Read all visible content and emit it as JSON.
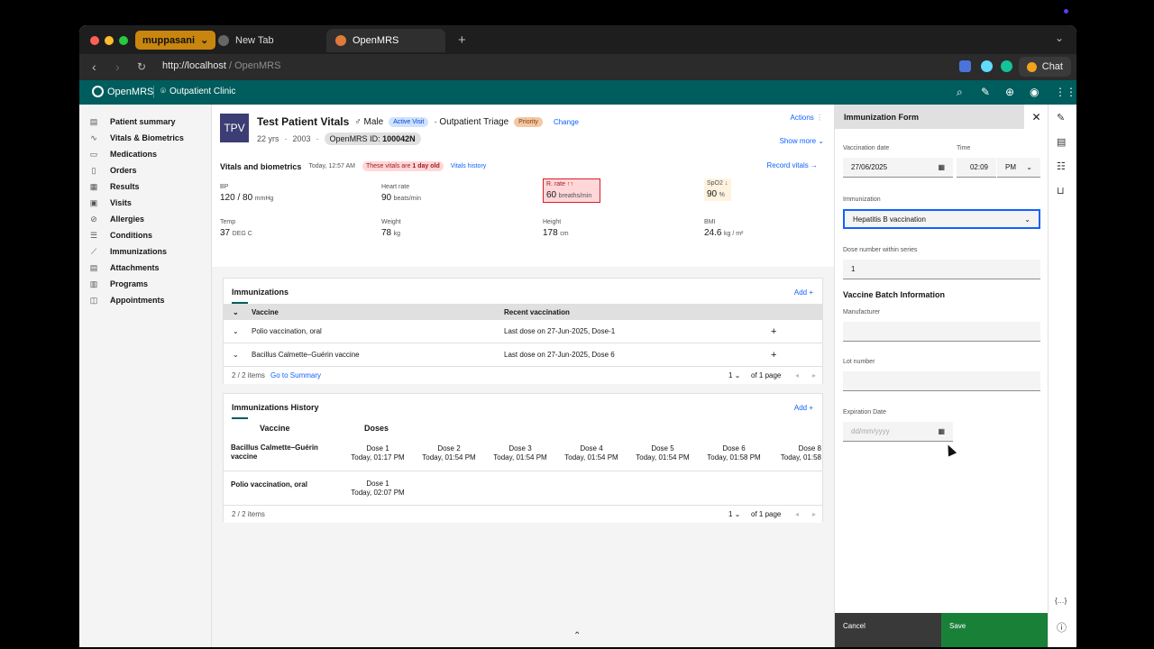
{
  "browser": {
    "profile": "muppasani",
    "tabs": [
      {
        "label": "New Tab"
      },
      {
        "label": "OpenMRS"
      }
    ],
    "url_host": "http://localhost",
    "url_path": " / OpenMRS",
    "chat_label": "Chat"
  },
  "app": {
    "logo_text": "OpenMRS",
    "location": "Outpatient Clinic"
  },
  "sidebar": {
    "items": [
      {
        "label": "Patient summary",
        "icon": "summary-icon"
      },
      {
        "label": "Vitals & Biometrics",
        "icon": "activity-icon"
      },
      {
        "label": "Medications",
        "icon": "medication-icon"
      },
      {
        "label": "Orders",
        "icon": "orders-icon"
      },
      {
        "label": "Results",
        "icon": "results-icon"
      },
      {
        "label": "Visits",
        "icon": "visits-icon"
      },
      {
        "label": "Allergies",
        "icon": "warning-icon"
      },
      {
        "label": "Conditions",
        "icon": "list-icon"
      },
      {
        "label": "Immunizations",
        "icon": "syringe-icon"
      },
      {
        "label": "Attachments",
        "icon": "attachment-icon"
      },
      {
        "label": "Programs",
        "icon": "programs-icon"
      },
      {
        "label": "Appointments",
        "icon": "calendar-icon"
      }
    ]
  },
  "patient": {
    "initials": "TPV",
    "name": "Test Patient Vitals",
    "sex": "♂ Male",
    "visit_badge": "Active Visit",
    "visit_type": "· Outpatient Triage",
    "priority": "Priority",
    "change": "Change",
    "age": "22 yrs",
    "year": "2003",
    "id_label": "OpenMRS ID:",
    "id_value": "100042N",
    "actions": "Actions",
    "show_more": "Show more"
  },
  "vitals": {
    "title": "Vitals and biometrics",
    "timestamp": "Today, 12:57 AM",
    "warning_prefix": "These vitals are",
    "warning_bold": "1 day old",
    "history_link": "Vitals history",
    "record_link": "Record vitals",
    "items": [
      {
        "label": "BP",
        "value": "120 / 80",
        "unit": "mmHg"
      },
      {
        "label": "Heart rate",
        "value": "90",
        "unit": "beats/min"
      },
      {
        "label": "R. rate ↑↑",
        "value": "60",
        "unit": "breaths/min"
      },
      {
        "label": "SpO2 ↓",
        "value": "90",
        "unit": "%"
      },
      {
        "label": "Temp",
        "value": "37",
        "unit": "DEG C"
      },
      {
        "label": "Weight",
        "value": "78",
        "unit": "kg"
      },
      {
        "label": "Height",
        "value": "178",
        "unit": "cm"
      },
      {
        "label": "BMI",
        "value": "24.6",
        "unit": "kg / m²"
      }
    ]
  },
  "immunizations": {
    "title": "Immunizations",
    "add": "Add",
    "columns": [
      "Vaccine",
      "Recent vaccination"
    ],
    "rows": [
      {
        "vaccine": "Polio vaccination, oral",
        "recent": "Last dose on 27-Jun-2025, Dose-1"
      },
      {
        "vaccine": "Bacillus Calmette–Guérin vaccine",
        "recent": "Last dose on 27-Jun-2025, Dose 6"
      }
    ],
    "items_count": "2 / 2 items",
    "go_summary": "Go to Summary",
    "page": "1",
    "of_pages": "of 1 page"
  },
  "history": {
    "title": "Immunizations History",
    "add": "Add",
    "col_vaccine": "Vaccine",
    "col_doses": "Doses",
    "rows": [
      {
        "vaccine": "Bacillus Calmette–Guérin vaccine",
        "doses": [
          {
            "dose": "Dose 1",
            "time": "Today, 01:17 PM"
          },
          {
            "dose": "Dose 2",
            "time": "Today, 01:54 PM"
          },
          {
            "dose": "Dose 3",
            "time": "Today, 01:54 PM"
          },
          {
            "dose": "Dose 4",
            "time": "Today, 01:54 PM"
          },
          {
            "dose": "Dose 5",
            "time": "Today, 01:54 PM"
          },
          {
            "dose": "Dose 6",
            "time": "Today, 01:58 PM"
          },
          {
            "dose": "Dose 8",
            "time": "Today, 01:58"
          }
        ]
      },
      {
        "vaccine": "Polio vaccination, oral",
        "doses": [
          {
            "dose": "Dose 1",
            "time": "Today, 02:07 PM"
          }
        ]
      }
    ],
    "items_count": "2 / 2 items",
    "page": "1",
    "of_pages": "of 1 page"
  },
  "form": {
    "title": "Immunization Form",
    "vaccination_date_label": "Vaccination date",
    "vaccination_date": "27/06/2025",
    "time_label": "Time",
    "time": "02:09",
    "ampm": "PM",
    "immunization_label": "Immunization",
    "immunization": "Hepatitis B vaccination",
    "dose_label": "Dose number within series",
    "dose": "1",
    "batch_title": "Vaccine Batch Information",
    "manufacturer_label": "Manufacturer",
    "lot_label": "Lot number",
    "expiration_label": "Expiration Date",
    "expiration_placeholder": "dd/mm/yyyy",
    "cancel": "Cancel",
    "save": "Save"
  },
  "colors": {
    "brand": "#005d5d",
    "primary_link": "#0f62fe",
    "avatar": "#3b3d74",
    "priority": "#f1c9a5",
    "active_visit": "#d0e2ff"
  }
}
